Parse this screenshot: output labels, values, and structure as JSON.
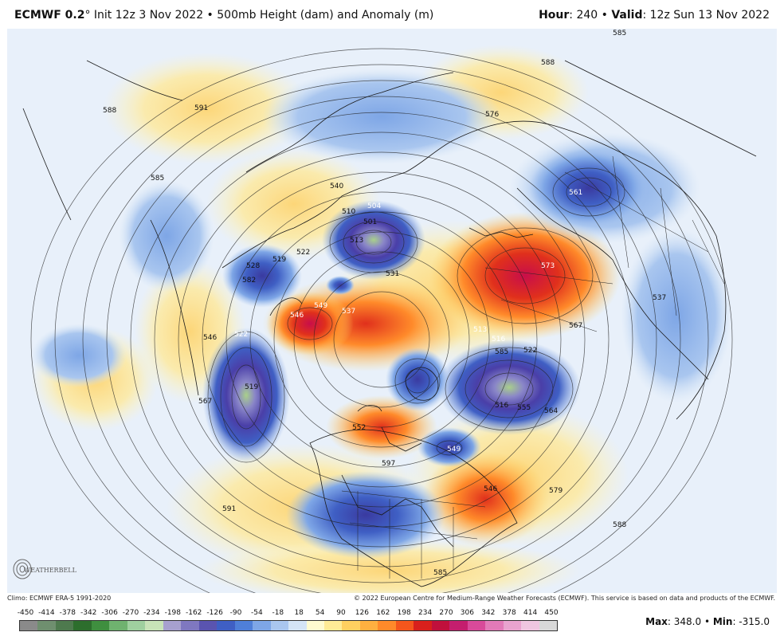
{
  "header": {
    "model": "ECMWF 0.2",
    "degree": "°",
    "init": " Init 12z 3 Nov 2022 • 500mb Height (dam) and Anomaly (m)",
    "hour_label": "Hour",
    "hour_value": ": 240 • ",
    "valid_label": "Valid",
    "valid_value": ": 12z Sun 13 Nov 2022"
  },
  "map": {
    "contour_labels": [
      "585",
      "588",
      "591",
      "576",
      "561",
      "585",
      "588",
      "540",
      "504",
      "501",
      "510",
      "513",
      "519",
      "522",
      "528",
      "531",
      "546",
      "537",
      "549",
      "519",
      "522",
      "516",
      "513",
      "567",
      "564",
      "555",
      "552",
      "546",
      "579",
      "588",
      "585",
      "591",
      "582",
      "597",
      "567",
      "573",
      "585",
      "522",
      "516",
      "549",
      "546",
      "537"
    ]
  },
  "logo_text": "WEATHERBELL",
  "credits": {
    "left": "Climo: ECMWF ERA-5 1991-2020",
    "right": "© 2022 European Centre for Medium-Range Weather Forecasts (ECMWF). This service is based on data and products of the ECMWF."
  },
  "scale": {
    "ticks": [
      "-450",
      "-414",
      "-378",
      "-342",
      "-306",
      "-270",
      "-234",
      "-198",
      "-162",
      "-126",
      "-90",
      "-54",
      "-18",
      "18",
      "54",
      "90",
      "126",
      "162",
      "198",
      "234",
      "270",
      "306",
      "342",
      "378",
      "414",
      "450"
    ],
    "colors": [
      "#8a8a8a",
      "#6f8f6f",
      "#4e7a4e",
      "#2d6e2d",
      "#3f8f3f",
      "#6fb26f",
      "#9fd09f",
      "#c8e3b8",
      "#a7a0cf",
      "#7f78c0",
      "#5a54b0",
      "#3f5fc4",
      "#4f7fd8",
      "#7ea6e6",
      "#a9c6ef",
      "#d4e4f6",
      "#fffbd0",
      "#ffeb96",
      "#ffd060",
      "#ffb040",
      "#ff8a2a",
      "#f4561c",
      "#d8201c",
      "#c0103c",
      "#c41e6e",
      "#d84a9a",
      "#e27ab8",
      "#e9a3cf",
      "#efc6e0",
      "#d8d8d8"
    ]
  },
  "stats": {
    "max_label": "Max",
    "max_value": ": 348.0 • ",
    "min_label": "Min",
    "min_value": ": -315.0"
  }
}
